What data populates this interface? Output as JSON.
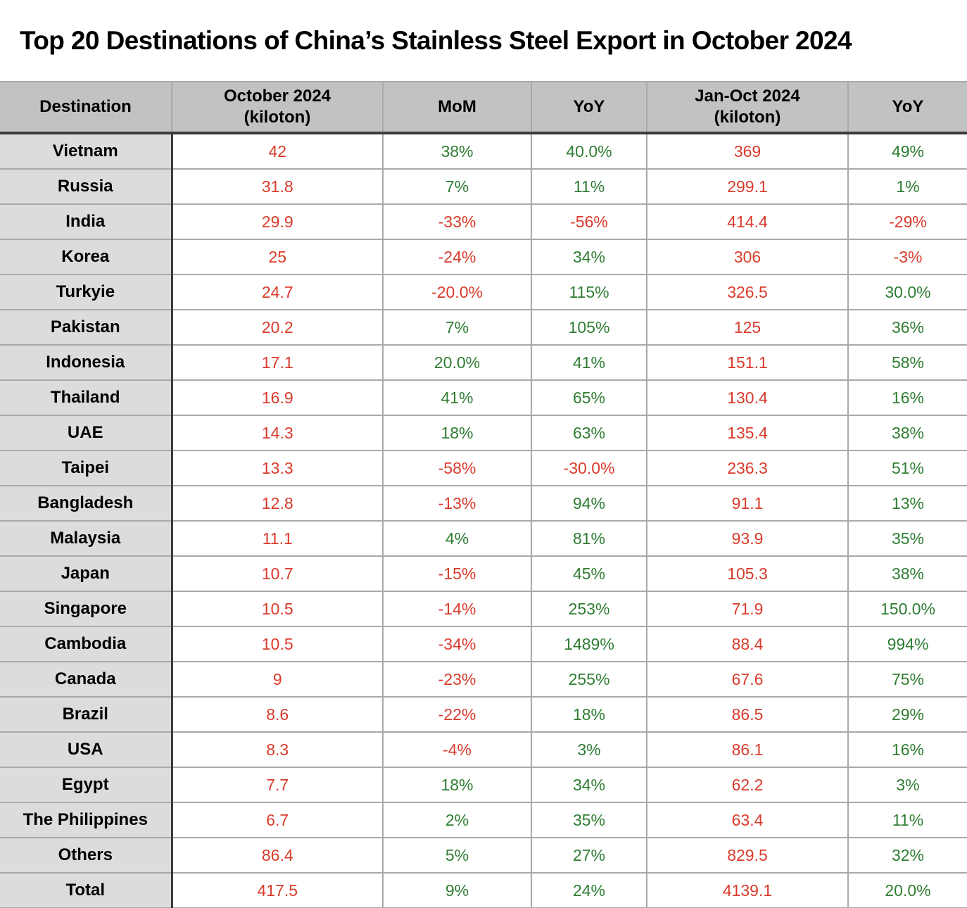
{
  "title": "Top 20 Destinations of China’s Stainless Steel Export in October 2024",
  "palette": {
    "value_red": "#d93b2b",
    "value_green": "#2f7d33",
    "header_bg": "#c1c2c2",
    "label_col_bg": "#dcdcdc",
    "grid_light": "#a9a9a9",
    "grid_dark": "#3b3b3b",
    "title_color": "#000000"
  },
  "chart_data": {
    "type": "table",
    "title": "Top 20 Destinations of China’s Stainless Steel Export in October 2024",
    "columns": [
      {
        "line1": "Destination",
        "line2": ""
      },
      {
        "line1": "October 2024",
        "line2": "(kiloton)"
      },
      {
        "line1": "MoM",
        "line2": ""
      },
      {
        "line1": "YoY",
        "line2": ""
      },
      {
        "line1": "Jan-Oct 2024",
        "line2": "(kiloton)"
      },
      {
        "line1": "YoY",
        "line2": ""
      }
    ],
    "color_rule": {
      "kiloton_columns": "always red",
      "percent_columns": "green if positive, red if negative"
    },
    "rows": [
      [
        "Vietnam",
        "42",
        "38%",
        "40.0%",
        "369",
        "49%"
      ],
      [
        "Russia",
        "31.8",
        "7%",
        "11%",
        "299.1",
        "1%"
      ],
      [
        "India",
        "29.9",
        "-33%",
        "-56%",
        "414.4",
        "-29%"
      ],
      [
        "Korea",
        "25",
        "-24%",
        "34%",
        "306",
        "-3%"
      ],
      [
        "Turkyie",
        "24.7",
        "-20.0%",
        "115%",
        "326.5",
        "30.0%"
      ],
      [
        "Pakistan",
        "20.2",
        "7%",
        "105%",
        "125",
        "36%"
      ],
      [
        "Indonesia",
        "17.1",
        "20.0%",
        "41%",
        "151.1",
        "58%"
      ],
      [
        "Thailand",
        "16.9",
        "41%",
        "65%",
        "130.4",
        "16%"
      ],
      [
        "UAE",
        "14.3",
        "18%",
        "63%",
        "135.4",
        "38%"
      ],
      [
        "Taipei",
        "13.3",
        "-58%",
        "-30.0%",
        "236.3",
        "51%"
      ],
      [
        "Bangladesh",
        "12.8",
        "-13%",
        "94%",
        "91.1",
        "13%"
      ],
      [
        "Malaysia",
        "11.1",
        "4%",
        "81%",
        "93.9",
        "35%"
      ],
      [
        "Japan",
        "10.7",
        "-15%",
        "45%",
        "105.3",
        "38%"
      ],
      [
        "Singapore",
        "10.5",
        "-14%",
        "253%",
        "71.9",
        "150.0%"
      ],
      [
        "Cambodia",
        "10.5",
        "-34%",
        "1489%",
        "88.4",
        "994%"
      ],
      [
        "Canada",
        "9",
        "-23%",
        "255%",
        "67.6",
        "75%"
      ],
      [
        "Brazil",
        "8.6",
        "-22%",
        "18%",
        "86.5",
        "29%"
      ],
      [
        "USA",
        "8.3",
        "-4%",
        "3%",
        "86.1",
        "16%"
      ],
      [
        "Egypt",
        "7.7",
        "18%",
        "34%",
        "62.2",
        "3%"
      ],
      [
        "The Philippines",
        "6.7",
        "2%",
        "35%",
        "63.4",
        "11%"
      ],
      [
        "Others",
        "86.4",
        "5%",
        "27%",
        "829.5",
        "32%"
      ],
      [
        "Total",
        "417.5",
        "9%",
        "24%",
        "4139.1",
        "20.0%"
      ]
    ]
  }
}
